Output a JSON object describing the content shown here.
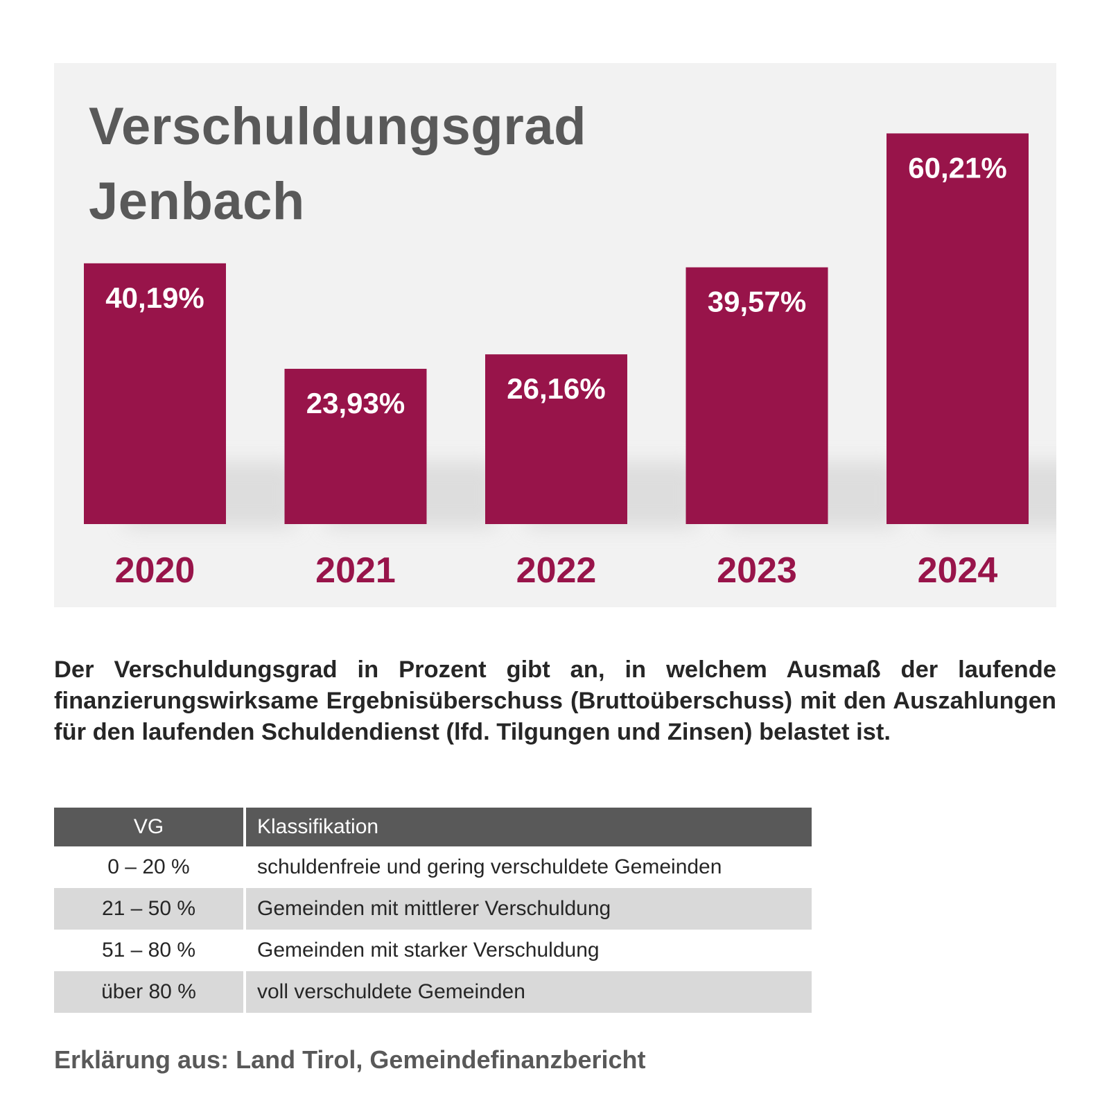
{
  "chart_data": {
    "type": "bar",
    "title": [
      "Verschuldungsgrad",
      "Jenbach"
    ],
    "categories": [
      "2020",
      "2021",
      "2022",
      "2023",
      "2024"
    ],
    "values": [
      40.19,
      23.93,
      26.16,
      39.57,
      60.21
    ],
    "value_labels": [
      "40,19%",
      "23,93%",
      "26,16%",
      "39,57%",
      "60,21%"
    ],
    "xlabel": "",
    "ylabel": "",
    "ylim": [
      0,
      70
    ],
    "grid": false,
    "legend": "none",
    "colors": {
      "bar": "#98144a",
      "category_label": "#98144a",
      "value_label": "#ffffff",
      "title": "#595959",
      "panel_background": "#f2f2f2"
    }
  },
  "description": "Der Verschuldungsgrad in Prozent gibt an, in welchem Ausmaß der laufende finanzierungswirksame Ergebnisüberschuss (Bruttoüberschuss) mit den Auszahlungen für den laufenden Schuldendienst (lfd. Tilgungen und Zinsen) belastet ist.",
  "table": {
    "headers": [
      "VG",
      "Klassifikation"
    ],
    "rows": [
      {
        "vg": "0 – 20 %",
        "klassifikation": "schuldenfreie und gering verschuldete Gemeinden"
      },
      {
        "vg": "21 – 50 %",
        "klassifikation": "Gemeinden mit mittlerer Verschuldung"
      },
      {
        "vg": "51 – 80 %",
        "klassifikation": "Gemeinden mit starker Verschuldung"
      },
      {
        "vg": "über 80 %",
        "klassifikation": "voll verschuldete Gemeinden"
      }
    ],
    "colors": {
      "header_background": "#595959",
      "shaded_row": "#d9d9d9"
    }
  },
  "source_note": "Erklärung aus: Land Tirol, Gemeindefinanzbericht"
}
